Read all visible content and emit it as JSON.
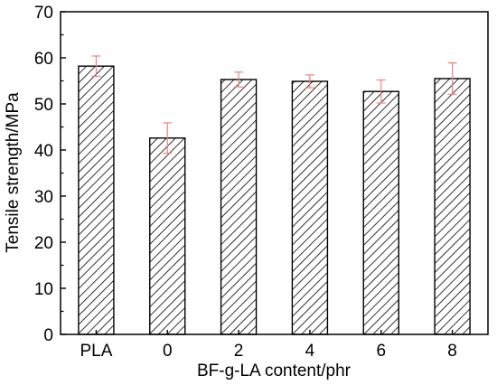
{
  "chart_data": {
    "type": "bar",
    "title": "",
    "xlabel": "BF-g-LA content/phr",
    "ylabel": "Tensile strength/MPa",
    "categories": [
      "PLA",
      "0",
      "2",
      "4",
      "6",
      "8"
    ],
    "values": [
      58.2,
      42.6,
      55.3,
      54.9,
      52.7,
      55.5
    ],
    "errors": [
      2.2,
      3.3,
      1.6,
      1.4,
      2.5,
      3.4
    ],
    "ylim": [
      0,
      70
    ],
    "yticks": [
      "0",
      "10",
      "20",
      "30",
      "40",
      "50",
      "60",
      "70"
    ],
    "bar_pattern": "diagonal-hatch",
    "grid": false,
    "colors": {
      "bar_fill": "#ffffff",
      "hatch": "#000000",
      "error_bar": "#f08080",
      "axis": "#000000"
    }
  }
}
